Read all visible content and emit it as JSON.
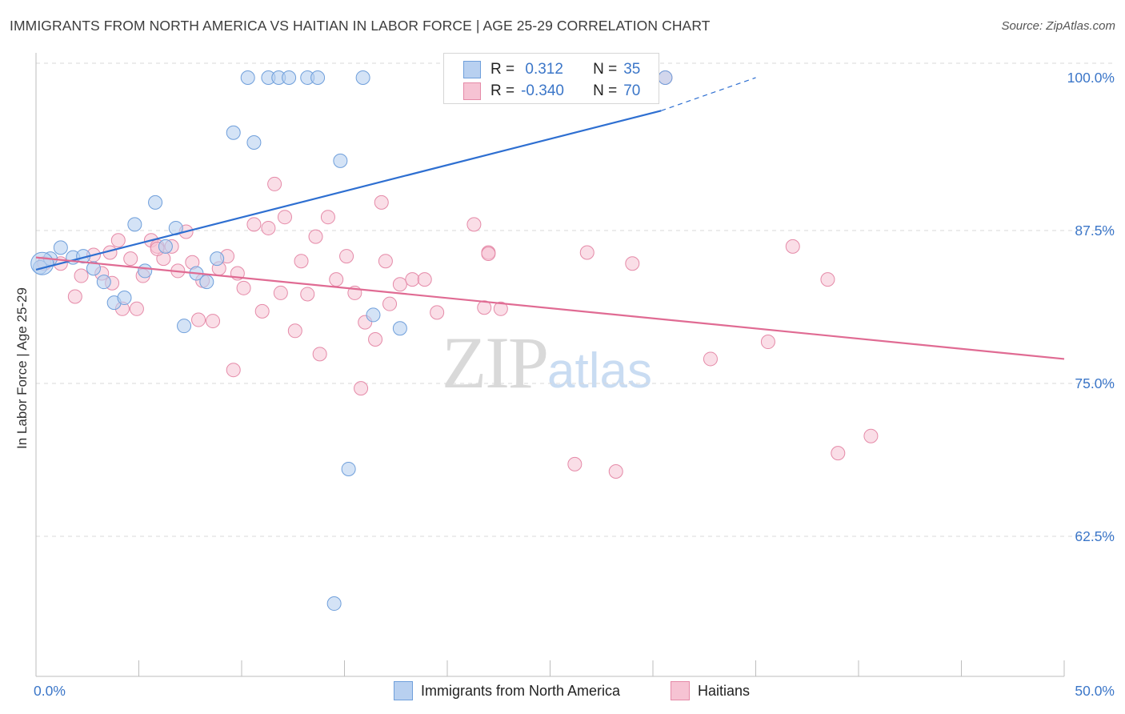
{
  "header": {
    "title": "IMMIGRANTS FROM NORTH AMERICA VS HAITIAN IN LABOR FORCE | AGE 25-29 CORRELATION CHART",
    "source": "Source: ZipAtlas.com"
  },
  "watermark": {
    "zip": "ZIP",
    "atlas": "atlas"
  },
  "legend": {
    "r_label": "R =",
    "n_label": "N =",
    "rows": [
      {
        "r": " 0.312",
        "n": "35"
      },
      {
        "r": "-0.340",
        "n": "70"
      }
    ]
  },
  "bottom_legend": [
    "Immigrants from North America",
    "Haitians"
  ],
  "colors": {
    "blue_fill": "#b8d0f0",
    "blue_stroke": "#6f9fdb",
    "blue_line": "#2e6fd1",
    "pink_fill": "#f6c3d3",
    "pink_stroke": "#e58aa8",
    "pink_line": "#e06b93",
    "tick_text": "#3b76c8"
  },
  "chart_data": {
    "type": "scatter",
    "title": "IMMIGRANTS FROM NORTH AMERICA VS HAITIAN IN LABOR FORCE | AGE 25-29 CORRELATION CHART",
    "xlabel": "",
    "ylabel": "In Labor Force | Age 25-29",
    "xlim": [
      0,
      50
    ],
    "ylim": [
      51,
      101
    ],
    "x_tick_labels": [
      "0.0%",
      "50.0%"
    ],
    "y_ticks": [
      {
        "value": 100,
        "label": "100.0%"
      },
      {
        "value": 87.5,
        "label": "87.5%"
      },
      {
        "value": 75,
        "label": "75.0%"
      },
      {
        "value": 62.5,
        "label": "62.5%"
      }
    ],
    "grid": true,
    "series": [
      {
        "name": "Immigrants from North America",
        "r": 0.312,
        "n": 35,
        "trend": {
          "x": [
            0,
            30.4
          ],
          "y": [
            84.3,
            97.3
          ],
          "dashed_to": {
            "x": 35,
            "y": 100
          }
        },
        "points": [
          [
            0.2,
            84.5
          ],
          [
            0.7,
            85.2
          ],
          [
            1.2,
            86.1
          ],
          [
            1.8,
            85.3
          ],
          [
            2.3,
            85.4
          ],
          [
            2.8,
            84.4
          ],
          [
            3.3,
            83.3
          ],
          [
            3.8,
            81.6
          ],
          [
            4.3,
            82.0
          ],
          [
            4.8,
            88.0
          ],
          [
            5.3,
            84.2
          ],
          [
            5.8,
            89.8
          ],
          [
            6.3,
            86.2
          ],
          [
            6.8,
            87.7
          ],
          [
            7.2,
            79.7
          ],
          [
            7.8,
            84.0
          ],
          [
            8.3,
            83.3
          ],
          [
            8.8,
            85.2
          ],
          [
            9.6,
            95.5
          ],
          [
            10.6,
            94.7
          ],
          [
            10.3,
            100
          ],
          [
            11.3,
            100
          ],
          [
            11.8,
            100
          ],
          [
            12.3,
            100
          ],
          [
            13.2,
            100
          ],
          [
            13.7,
            100
          ],
          [
            15.9,
            100
          ],
          [
            14.5,
            57.0
          ],
          [
            14.8,
            93.2
          ],
          [
            15.2,
            68.0
          ],
          [
            16.4,
            80.6
          ],
          [
            17.7,
            79.5
          ],
          [
            20.5,
            100
          ],
          [
            30.6,
            100
          ],
          [
            0.3,
            84.8
          ]
        ]
      },
      {
        "name": "Haitians",
        "r": -0.34,
        "n": 70,
        "trend": {
          "x": [
            0,
            50
          ],
          "y": [
            85.3,
            77.0
          ]
        },
        "points": [
          [
            0.4,
            84.8
          ],
          [
            1.2,
            84.8
          ],
          [
            1.9,
            82.1
          ],
          [
            2.2,
            83.8
          ],
          [
            2.8,
            85.5
          ],
          [
            3.2,
            84.0
          ],
          [
            3.6,
            85.7
          ],
          [
            3.7,
            83.2
          ],
          [
            4.0,
            86.7
          ],
          [
            4.2,
            81.1
          ],
          [
            4.6,
            85.2
          ],
          [
            4.9,
            81.1
          ],
          [
            5.2,
            83.8
          ],
          [
            5.6,
            86.7
          ],
          [
            5.9,
            86.2
          ],
          [
            6.2,
            85.2
          ],
          [
            6.6,
            86.2
          ],
          [
            6.9,
            84.2
          ],
          [
            7.3,
            87.4
          ],
          [
            7.6,
            84.9
          ],
          [
            7.9,
            80.2
          ],
          [
            8.1,
            83.4
          ],
          [
            8.6,
            80.1
          ],
          [
            8.9,
            84.4
          ],
          [
            9.3,
            85.4
          ],
          [
            9.6,
            76.1
          ],
          [
            9.8,
            84.0
          ],
          [
            10.1,
            82.8
          ],
          [
            10.6,
            88.0
          ],
          [
            11.0,
            80.9
          ],
          [
            11.3,
            87.7
          ],
          [
            11.6,
            91.3
          ],
          [
            11.9,
            82.4
          ],
          [
            12.1,
            88.6
          ],
          [
            12.6,
            79.3
          ],
          [
            12.9,
            85.0
          ],
          [
            13.6,
            87.0
          ],
          [
            13.8,
            77.4
          ],
          [
            14.2,
            88.6
          ],
          [
            14.6,
            83.5
          ],
          [
            15.1,
            85.4
          ],
          [
            15.5,
            82.4
          ],
          [
            15.8,
            74.6
          ],
          [
            16.0,
            80.0
          ],
          [
            16.5,
            78.6
          ],
          [
            16.8,
            89.8
          ],
          [
            17.0,
            85.0
          ],
          [
            17.2,
            81.5
          ],
          [
            17.7,
            83.1
          ],
          [
            18.3,
            83.5
          ],
          [
            18.9,
            83.5
          ],
          [
            19.5,
            80.8
          ],
          [
            21.3,
            88.0
          ],
          [
            21.8,
            81.2
          ],
          [
            22.0,
            85.7
          ],
          [
            22.6,
            81.1
          ],
          [
            26.2,
            68.4
          ],
          [
            26.8,
            85.7
          ],
          [
            28.2,
            67.8
          ],
          [
            29.0,
            84.8
          ],
          [
            32.8,
            77.0
          ],
          [
            35.6,
            78.4
          ],
          [
            36.8,
            86.2
          ],
          [
            38.5,
            83.5
          ],
          [
            39.0,
            69.3
          ],
          [
            40.6,
            70.7
          ],
          [
            22.0,
            85.6
          ],
          [
            5.9,
            86.0
          ],
          [
            13.2,
            82.3
          ],
          [
            30.6,
            100
          ]
        ]
      }
    ]
  }
}
